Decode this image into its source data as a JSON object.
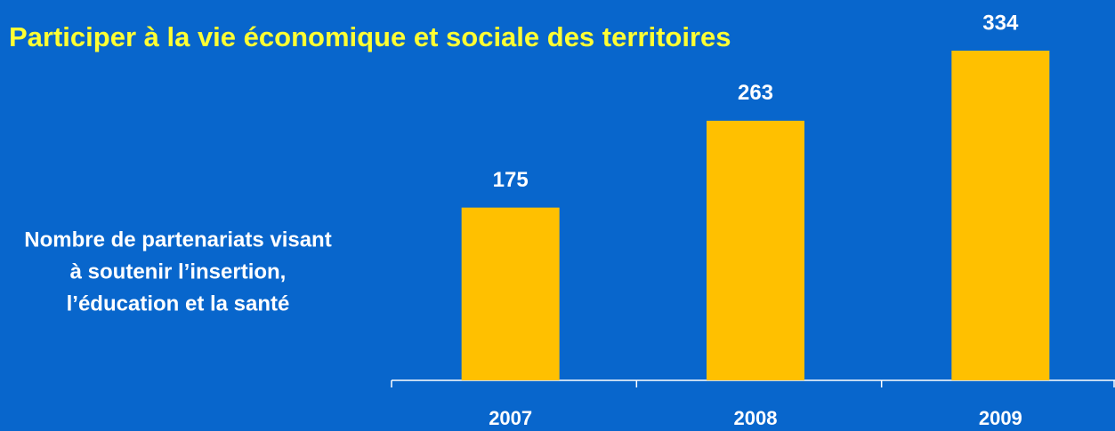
{
  "chart_data": {
    "type": "bar",
    "title": "Participer à la vie économique et sociale des territoires",
    "annotations": [
      "Nombre de partenariats visant",
      "à soutenir l’insertion,",
      "l’éducation et la santé"
    ],
    "categories": [
      "2007",
      "2008",
      "2009"
    ],
    "values": [
      175,
      263,
      334
    ],
    "color": "#ffc000"
  }
}
